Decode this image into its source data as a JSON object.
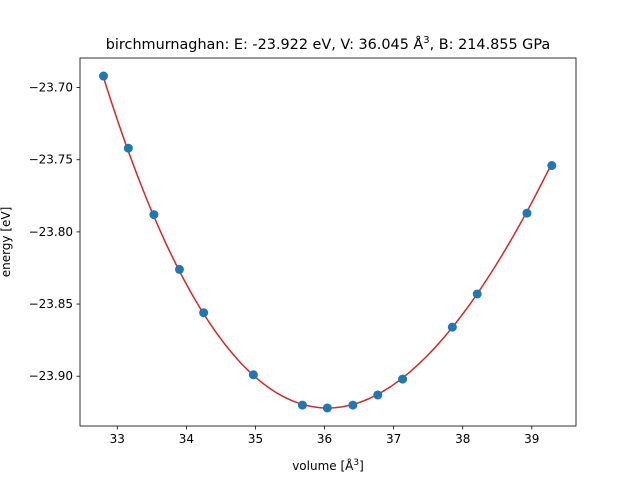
{
  "chart_data": {
    "type": "scatter",
    "title": {
      "prefix": "birchmurnaghan: E: -23.922 eV, V: 36.045 Å",
      "sup": "3",
      "suffix": ", B: 214.855 GPa"
    },
    "xlabel": {
      "prefix": "volume [Å",
      "sup": "3",
      "suffix": "]"
    },
    "ylabel": "energy [eV]",
    "xlim": [
      32.46,
      39.64
    ],
    "ylim": [
      -23.9345,
      -23.6795
    ],
    "xticks": [
      33,
      34,
      35,
      36,
      37,
      38,
      39
    ],
    "yticks": [
      -23.9,
      -23.85,
      -23.8,
      -23.75,
      -23.7
    ],
    "ytick_labels": [
      "−23.90",
      "−23.85",
      "−23.80",
      "−23.75",
      "−23.70"
    ],
    "fit": {
      "E0": -23.922,
      "V0": 36.045,
      "B_GPa": 214.855,
      "Bp": 4.0,
      "color": "#d62728"
    },
    "points": {
      "color": "#1f77b4",
      "x": [
        32.8,
        33.16,
        33.53,
        33.9,
        34.25,
        34.97,
        35.68,
        36.04,
        36.41,
        36.77,
        37.13,
        37.85,
        38.21,
        38.93,
        39.29
      ],
      "y": [
        -23.692,
        -23.742,
        -23.788,
        -23.826,
        -23.856,
        -23.899,
        -23.92,
        -23.922,
        -23.92,
        -23.913,
        -23.902,
        -23.866,
        -23.843,
        -23.787,
        -23.754
      ]
    }
  }
}
